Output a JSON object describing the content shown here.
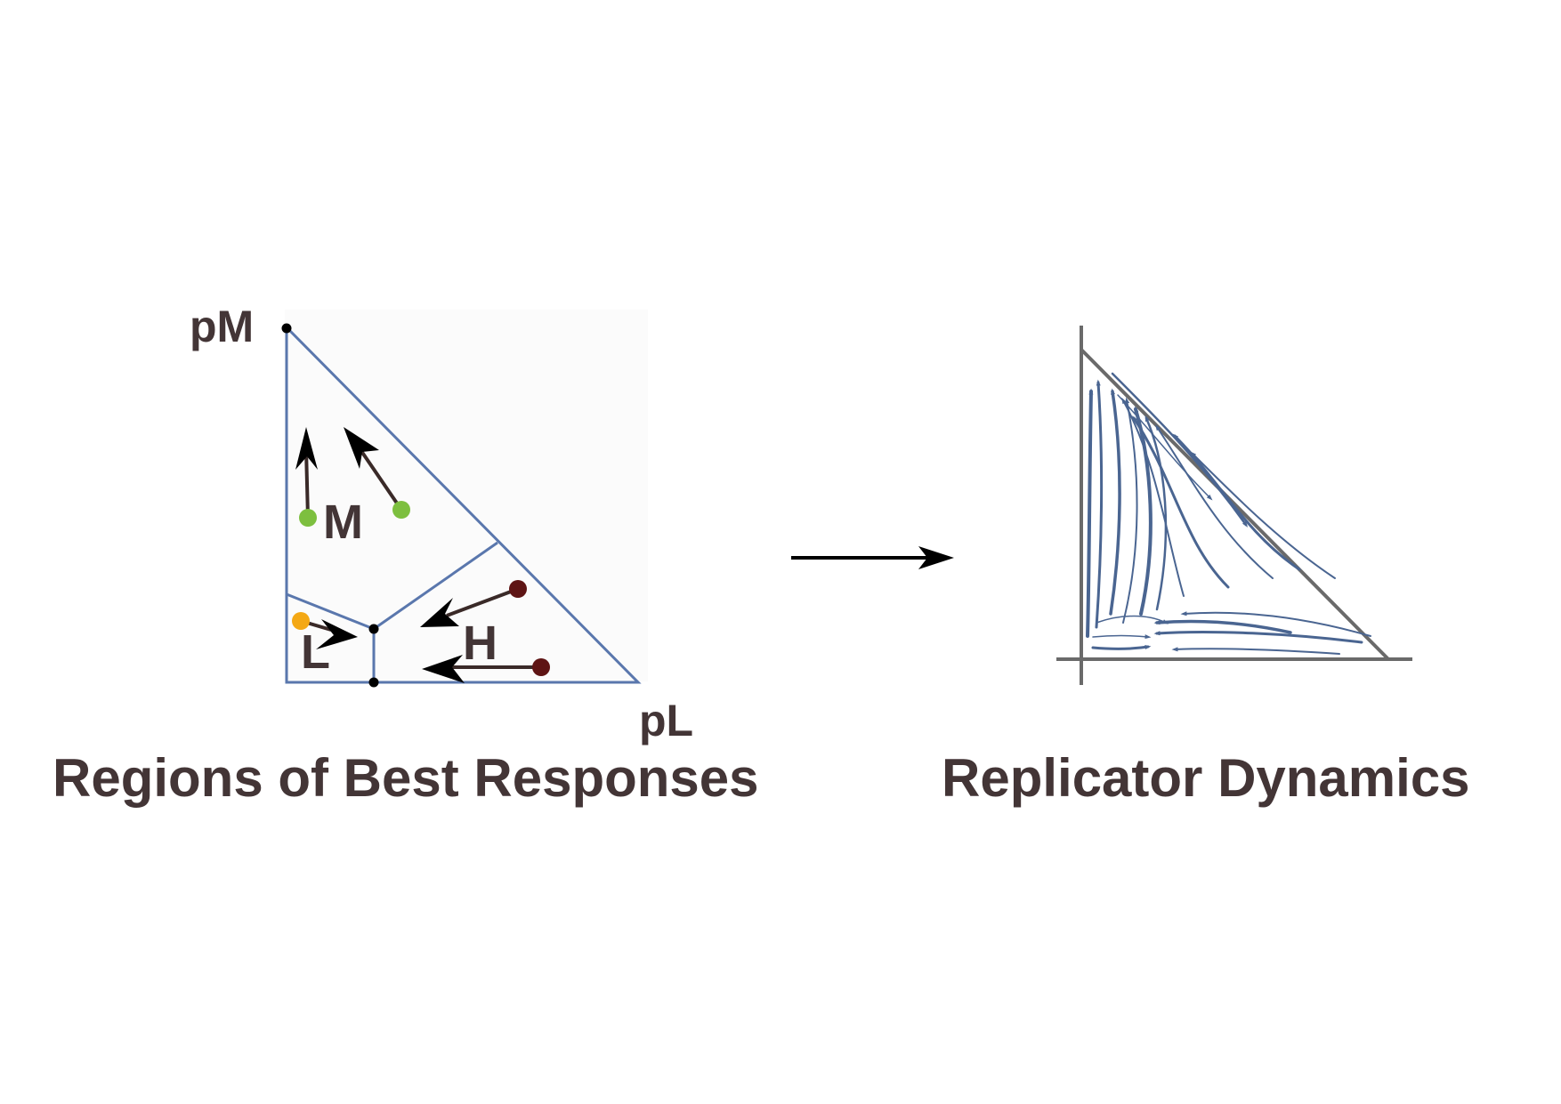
{
  "best_responses": {
    "axis_y_label": "pM",
    "axis_x_label": "pL",
    "region_labels": {
      "m": "M",
      "l": "L",
      "h": "H"
    },
    "caption": "Regions of Best Responses",
    "colors": {
      "boundary": "#5a77ad",
      "arrow": "#000000",
      "arrow_shaft": "#3a2a28",
      "m_dot": "#7dbf3f",
      "l_dot": "#f4a814",
      "h_dot": "#5e1414",
      "vertex": "#000000"
    }
  },
  "transition_arrow": {
    "icon": "right-arrow-icon"
  },
  "replicator": {
    "caption": "Replicator Dynamics",
    "colors": {
      "axis": "#6a6a6a",
      "stream": "#4a6591"
    }
  }
}
